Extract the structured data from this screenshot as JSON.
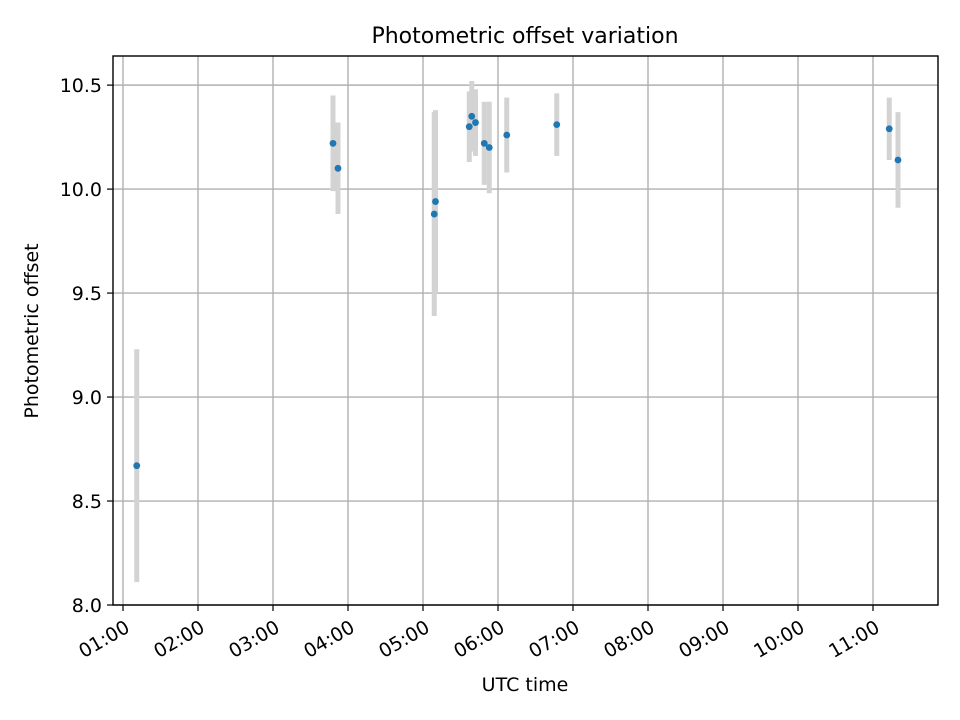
{
  "chart_data": {
    "type": "scatter",
    "title": "Photometric offset variation",
    "xlabel": "UTC time",
    "ylabel": "Photometric offset",
    "ylim": [
      8.0,
      10.64
    ],
    "xlim": [
      "00:52",
      "11:52"
    ],
    "grid": true,
    "x_tick_labels": [
      "01:00",
      "02:00",
      "03:00",
      "04:00",
      "05:00",
      "06:00",
      "07:00",
      "08:00",
      "09:00",
      "10:00",
      "11:00"
    ],
    "y_tick_labels": [
      "8.0",
      "8.5",
      "9.0",
      "9.5",
      "10.0",
      "10.5"
    ],
    "series": [
      {
        "points": [
          {
            "x": "01:11",
            "y": 8.67,
            "err": 0.56
          },
          {
            "x": "03:48",
            "y": 10.22,
            "err": 0.23
          },
          {
            "x": "03:52",
            "y": 10.1,
            "err": 0.22
          },
          {
            "x": "05:09",
            "y": 9.88,
            "err": 0.49
          },
          {
            "x": "05:10",
            "y": 9.94,
            "err": 0.44
          },
          {
            "x": "05:37",
            "y": 10.3,
            "err": 0.17
          },
          {
            "x": "05:39",
            "y": 10.35,
            "err": 0.17
          },
          {
            "x": "05:42",
            "y": 10.32,
            "err": 0.16
          },
          {
            "x": "05:49",
            "y": 10.22,
            "err": 0.2
          },
          {
            "x": "05:53",
            "y": 10.2,
            "err": 0.22
          },
          {
            "x": "06:07",
            "y": 10.26,
            "err": 0.18
          },
          {
            "x": "06:47",
            "y": 10.31,
            "err": 0.15
          },
          {
            "x": "11:13",
            "y": 10.29,
            "err": 0.15
          },
          {
            "x": "11:20",
            "y": 10.14,
            "err": 0.23
          }
        ]
      }
    ],
    "colors": {
      "point": "#1f77b4",
      "errorbar": "#d3d3d3",
      "grid": "#b0b0b0"
    }
  }
}
